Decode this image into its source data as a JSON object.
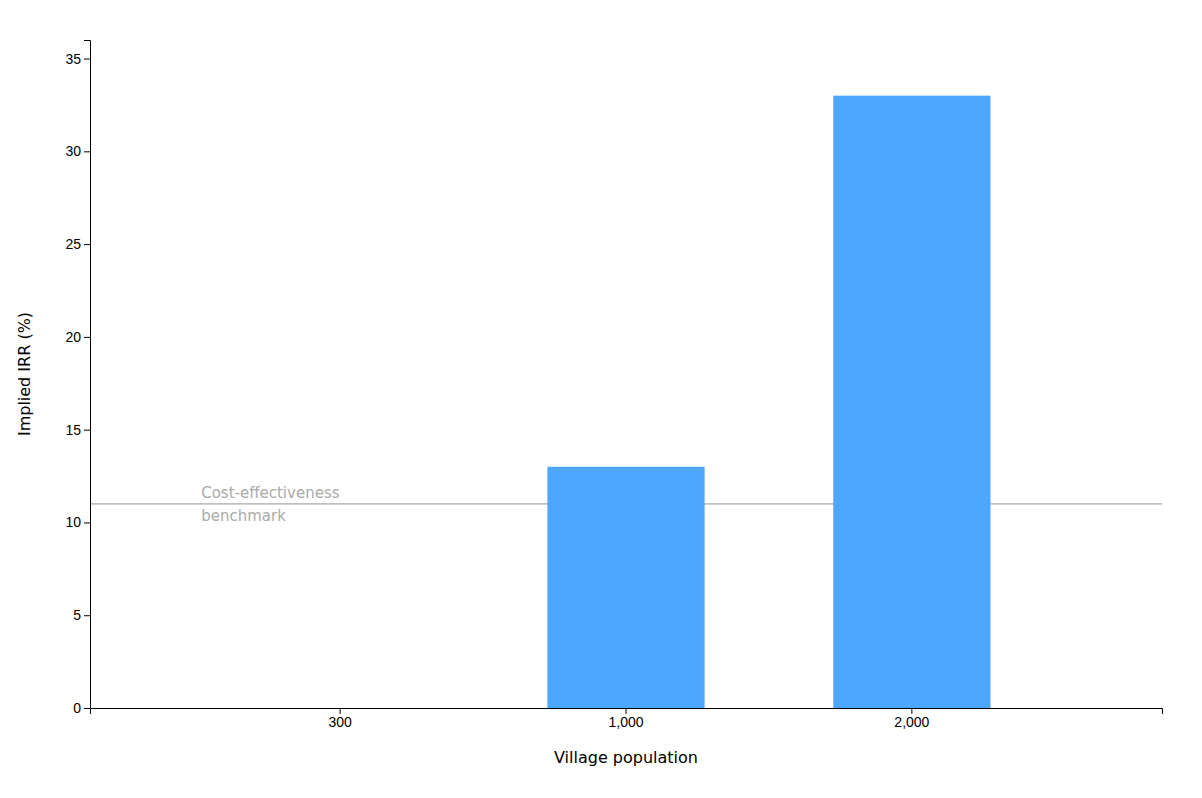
{
  "chart_data": {
    "type": "bar",
    "categories": [
      "300",
      "1,000",
      "2,000"
    ],
    "values": [
      0,
      13,
      33
    ],
    "color": "#4da6ff",
    "xlabel": "Village population",
    "ylabel": "Implied IRR (%)",
    "ylim": [
      0,
      36
    ],
    "yticks": [
      0,
      5,
      10,
      15,
      20,
      25,
      30,
      35
    ],
    "grid": false,
    "benchmark": {
      "value": 11,
      "label_lines": [
        "Cost-effectiveness",
        "benchmark"
      ],
      "color": "#aaaaaa"
    }
  }
}
